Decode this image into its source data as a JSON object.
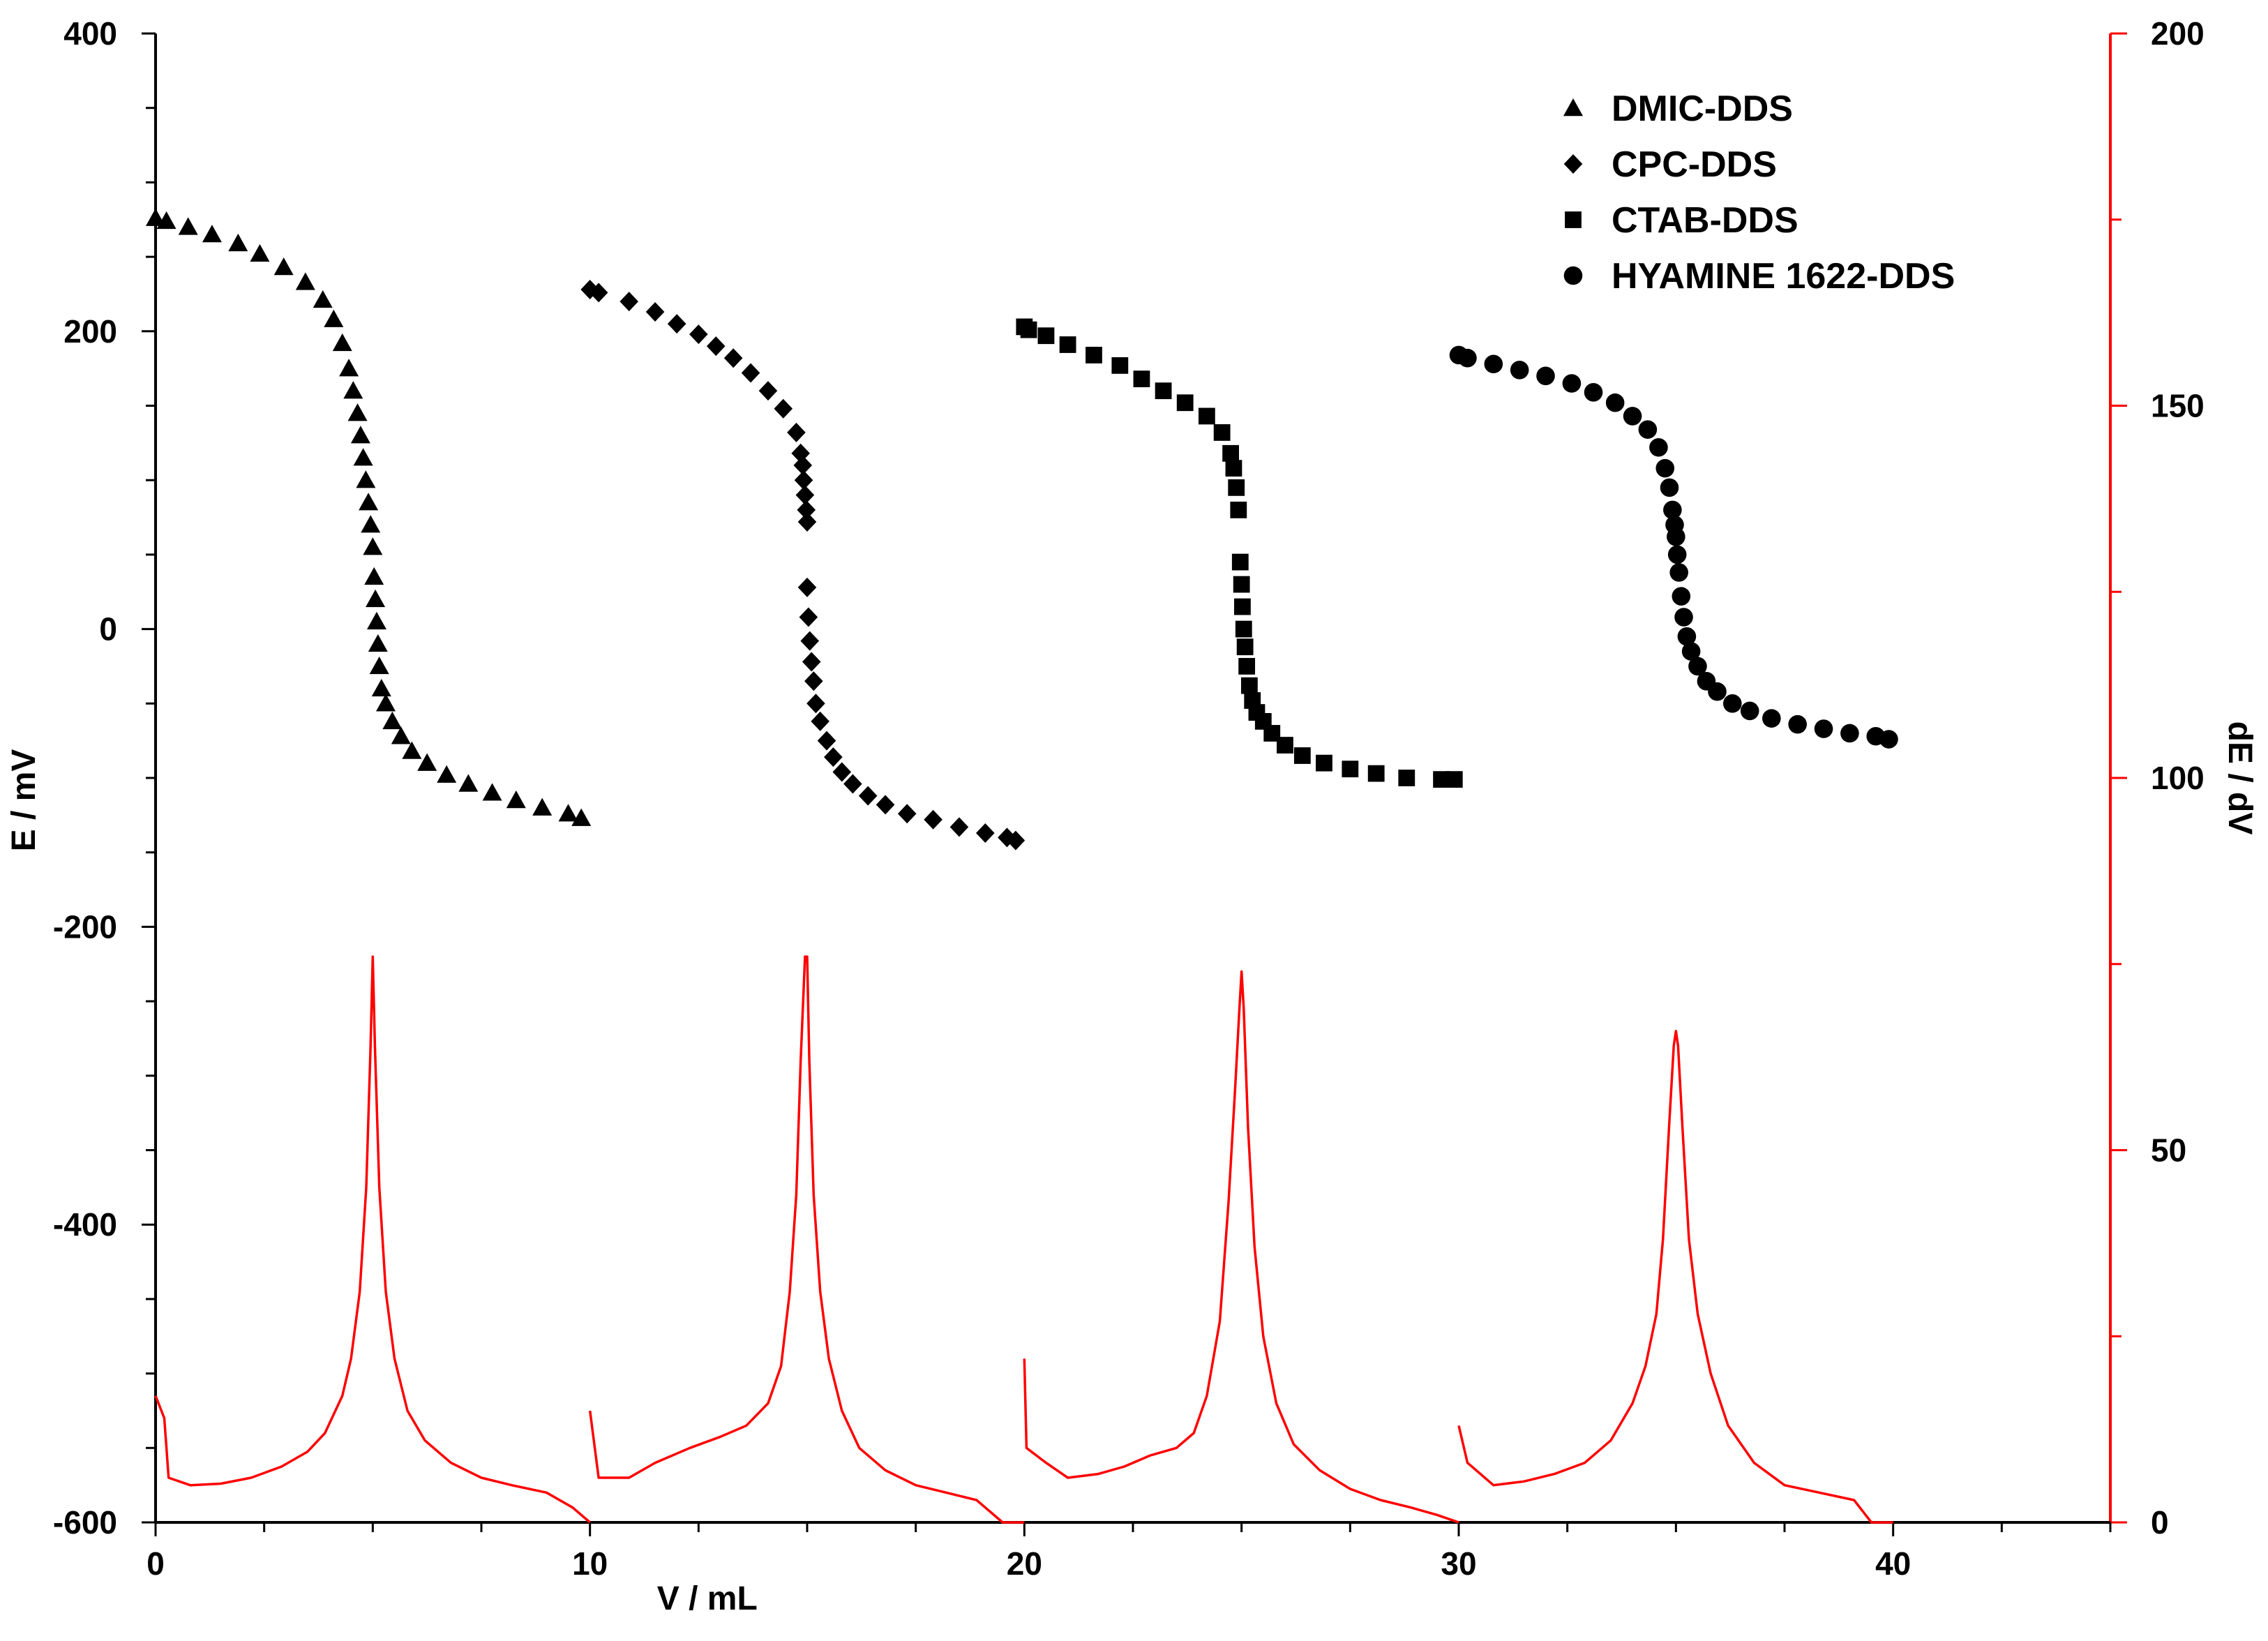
{
  "chart_data": {
    "type": "scatter",
    "title": "",
    "xlabel": "V / mL",
    "ylabel": "E / mV",
    "y2label": "dE / dV",
    "xlim": [
      0,
      45
    ],
    "ylim": [
      -600,
      400
    ],
    "y2lim": [
      0,
      200
    ],
    "x_ticks": [
      0,
      10,
      20,
      30,
      40
    ],
    "y_ticks": [
      -600,
      -400,
      -200,
      0,
      200,
      400
    ],
    "y2_ticks": [
      0,
      50,
      100,
      150,
      200
    ],
    "colors": {
      "potential": "#000000",
      "derivative": "#ff0000"
    },
    "legend_position": "top-right",
    "series": [
      {
        "name": "DMIC-DDS",
        "marker": "triangle",
        "axis": "left",
        "x": [
          0,
          0.25,
          0.75,
          1.3,
          1.9,
          2.4,
          2.95,
          3.45,
          3.85,
          4.1,
          4.3,
          4.45,
          4.55,
          4.65,
          4.72,
          4.78,
          4.84,
          4.9,
          4.95,
          5.0,
          5.03,
          5.06,
          5.09,
          5.12,
          5.15,
          5.2,
          5.3,
          5.45,
          5.65,
          5.9,
          6.25,
          6.7,
          7.2,
          7.75,
          8.3,
          8.9,
          9.5,
          9.8
        ],
        "y": [
          276,
          274,
          270,
          265,
          259,
          252,
          243,
          233,
          221,
          208,
          192,
          175,
          160,
          145,
          130,
          115,
          100,
          85,
          70,
          55,
          35,
          20,
          5,
          -10,
          -25,
          -40,
          -50,
          -62,
          -72,
          -82,
          -90,
          -98,
          -104,
          -110,
          -115,
          -120,
          -124,
          -127
        ]
      },
      {
        "name": "CPC-DDS",
        "marker": "diamond",
        "axis": "left",
        "x": [
          10,
          10.2,
          10.9,
          11.5,
          12.0,
          12.5,
          12.9,
          13.3,
          13.7,
          14.1,
          14.45,
          14.75,
          14.85,
          14.9,
          14.92,
          14.95,
          14.98,
          15.0,
          15.0,
          15.03,
          15.06,
          15.1,
          15.15,
          15.2,
          15.3,
          15.45,
          15.6,
          15.8,
          16.05,
          16.4,
          16.8,
          17.3,
          17.9,
          18.5,
          19.1,
          19.6,
          19.8
        ],
        "y": [
          228,
          226,
          220,
          213,
          205,
          198,
          190,
          182,
          172,
          160,
          148,
          132,
          118,
          110,
          100,
          90,
          80,
          72,
          28,
          8,
          -8,
          -22,
          -35,
          -50,
          -62,
          -75,
          -86,
          -96,
          -104,
          -112,
          -118,
          -124,
          -128,
          -133,
          -137,
          -140,
          -142
        ]
      },
      {
        "name": "CTAB-DDS",
        "marker": "square",
        "axis": "left",
        "x": [
          20,
          20.1,
          20.5,
          21.0,
          21.6,
          22.2,
          22.7,
          23.2,
          23.7,
          24.2,
          24.55,
          24.75,
          24.82,
          24.88,
          24.93,
          24.97,
          25.0,
          25.02,
          25.05,
          25.08,
          25.12,
          25.18,
          25.25,
          25.35,
          25.5,
          25.7,
          26.0,
          26.4,
          26.9,
          27.5,
          28.1,
          28.8,
          29.6,
          29.9
        ],
        "y": [
          203,
          201,
          197,
          191,
          184,
          177,
          168,
          160,
          152,
          143,
          132,
          118,
          108,
          95,
          80,
          45,
          30,
          15,
          0,
          -12,
          -25,
          -38,
          -48,
          -56,
          -62,
          -70,
          -78,
          -85,
          -90,
          -94,
          -97,
          -100,
          -101,
          -101
        ]
      },
      {
        "name": "HYAMINE 1622-DDS",
        "marker": "circle",
        "axis": "left",
        "x": [
          30,
          30.2,
          30.8,
          31.4,
          32.0,
          32.6,
          33.1,
          33.6,
          34.0,
          34.35,
          34.6,
          34.75,
          34.85,
          34.92,
          34.97,
          35.0,
          35.03,
          35.07,
          35.12,
          35.18,
          35.25,
          35.35,
          35.5,
          35.7,
          35.95,
          36.3,
          36.7,
          37.2,
          37.8,
          38.4,
          39.0,
          39.6,
          39.9
        ],
        "y": [
          184,
          182,
          178,
          174,
          170,
          165,
          159,
          152,
          143,
          134,
          122,
          108,
          95,
          80,
          70,
          62,
          50,
          38,
          22,
          8,
          -5,
          -15,
          -25,
          -35,
          -42,
          -50,
          -55,
          -60,
          -64,
          -67,
          -70,
          -72,
          -74
        ]
      },
      {
        "name": "dE/dV",
        "marker": "line",
        "axis": "right",
        "x": [
          0,
          0.2,
          0.3,
          0.8,
          1.5,
          2.2,
          2.9,
          3.5,
          3.9,
          4.3,
          4.5,
          4.7,
          4.85,
          4.95,
          5.0,
          5.05,
          5.15,
          5.3,
          5.5,
          5.8,
          6.2,
          6.8,
          7.5,
          8.2,
          9.0,
          9.6,
          10.0,
          null,
          10.0,
          10.2,
          10.9,
          11.5,
          12.3,
          13.0,
          13.6,
          14.1,
          14.4,
          14.6,
          14.75,
          14.85,
          14.95,
          15.0,
          15.05,
          15.15,
          15.3,
          15.5,
          15.8,
          16.2,
          16.8,
          17.5,
          18.2,
          18.9,
          19.5,
          20.0,
          null,
          20.0,
          20.05,
          20.5,
          21.0,
          21.7,
          22.3,
          22.9,
          23.5,
          23.9,
          24.2,
          24.5,
          24.7,
          24.85,
          24.95,
          25.0,
          25.05,
          25.15,
          25.3,
          25.5,
          25.8,
          26.2,
          26.8,
          27.5,
          28.2,
          28.9,
          29.5,
          30.0,
          null,
          30.0,
          30.2,
          30.8,
          31.5,
          32.2,
          32.9,
          33.5,
          34.0,
          34.3,
          34.55,
          34.7,
          34.85,
          34.95,
          35.0,
          35.05,
          35.15,
          35.3,
          35.5,
          35.8,
          36.2,
          36.8,
          37.5,
          38.3,
          39.1,
          39.5,
          40.0
        ],
        "y": [
          17,
          14,
          6,
          5,
          5.2,
          6,
          7.5,
          9.5,
          12,
          17,
          22,
          31,
          45,
          64,
          76,
          64,
          45,
          31,
          22,
          15,
          11,
          8,
          6,
          5,
          4,
          2,
          0,
          null,
          15,
          6,
          6,
          8,
          10,
          11.5,
          13,
          16,
          21,
          31,
          44,
          62,
          76,
          76,
          62,
          44,
          31,
          22,
          15,
          10,
          7,
          5,
          4,
          3,
          0,
          0,
          null,
          22,
          10,
          8,
          6,
          6.5,
          7.5,
          9,
          10,
          12,
          17,
          27,
          43,
          58,
          69,
          74,
          69,
          53,
          37,
          25,
          16,
          10.5,
          7,
          4.5,
          3,
          2,
          1,
          0,
          null,
          13,
          8,
          5,
          5.5,
          6.5,
          8,
          11,
          16,
          21,
          28,
          38,
          54,
          64,
          66,
          64,
          53,
          38,
          28,
          20,
          13,
          8,
          5,
          4,
          3,
          0,
          0
        ]
      }
    ]
  }
}
